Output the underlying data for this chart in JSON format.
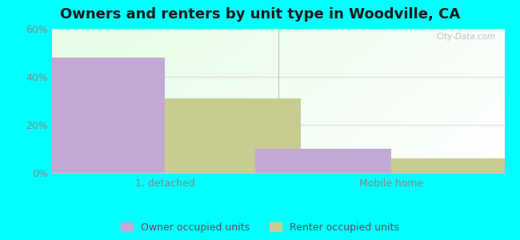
{
  "title": "Owners and renters by unit type in Woodville, CA",
  "categories": [
    "1, detached",
    "Mobile home"
  ],
  "owner_values": [
    48,
    31
  ],
  "renter_values": [
    10,
    6
  ],
  "owner_color": "#c4a8d4",
  "renter_color": "#c8cc90",
  "ylim": [
    0,
    60
  ],
  "yticks": [
    0,
    20,
    40,
    60
  ],
  "ytick_labels": [
    "0%",
    "20%",
    "40%",
    "60%"
  ],
  "bar_width": 0.3,
  "group_positions": [
    0.25,
    0.75
  ],
  "outer_bg": "#00ffff",
  "legend_owner": "Owner occupied units",
  "legend_renter": "Renter occupied units",
  "watermark": "City-Data.com",
  "title_fontsize": 13,
  "tick_fontsize": 9,
  "legend_fontsize": 9,
  "grid_color": "#dddddd",
  "ytick_color": "#888888",
  "xtick_color": "#888888"
}
